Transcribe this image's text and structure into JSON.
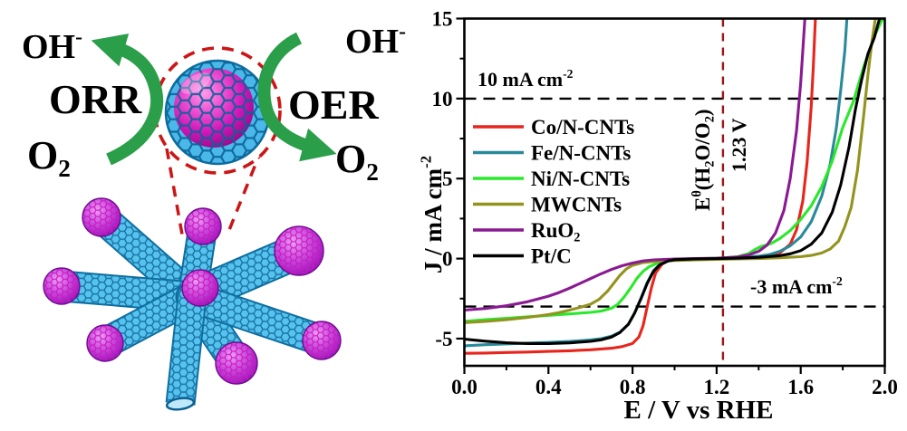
{
  "diagram": {
    "labels": {
      "hydroxide_left": {
        "text": "OH⁻",
        "segments": [
          [
            "t",
            "OH"
          ],
          [
            "sup",
            "-"
          ]
        ]
      },
      "orr": {
        "text": "ORR",
        "segments": [
          [
            "t",
            "ORR"
          ]
        ]
      },
      "oxygen_left": {
        "text": "O₂",
        "segments": [
          [
            "t",
            "O"
          ],
          [
            "sub",
            "2"
          ]
        ]
      },
      "hydroxide_right": {
        "text": "OH⁻",
        "segments": [
          [
            "t",
            "OH"
          ],
          [
            "sup",
            "-"
          ]
        ]
      },
      "oer": {
        "text": "OER",
        "segments": [
          [
            "t",
            "OER"
          ]
        ]
      },
      "oxygen_right": {
        "text": "O₂",
        "segments": [
          [
            "t",
            "O"
          ],
          [
            "sub",
            "2"
          ]
        ]
      }
    },
    "colors": {
      "arrow_green": "#2b9e4a",
      "dashed_red": "#cc1616",
      "nanotube_cyan": "#55c3ee",
      "particle_magenta": "#cf17b8"
    }
  },
  "chart_data": {
    "type": "line",
    "title": "",
    "xlabel": "E / V vs RHE",
    "xlabel_segments": [
      [
        "t",
        "E / V vs RHE"
      ]
    ],
    "ylabel": "J / mA cm⁻²",
    "ylabel_segments": [
      [
        "t",
        "J / mA cm"
      ],
      [
        "sup",
        "-2"
      ]
    ],
    "xlim": [
      0.0,
      2.0
    ],
    "ylim": [
      -6.7,
      15
    ],
    "grid": false,
    "legend_position": "upper-left-inside",
    "xticks": {
      "major": [
        0.0,
        0.4,
        0.8,
        1.2,
        1.6,
        2.0
      ],
      "labels": [
        "0.0",
        "0.4",
        "0.8",
        "1.2",
        "1.6",
        "2.0"
      ],
      "minor": [
        0.2,
        0.6,
        1.0,
        1.4,
        1.8
      ]
    },
    "yticks": {
      "major": [
        -5,
        0,
        5,
        10,
        15
      ],
      "labels": [
        "-5",
        "0",
        "5",
        "10",
        "15"
      ],
      "minor": [
        -2.5,
        2.5,
        7.5,
        12.5
      ]
    },
    "annotations": {
      "hline_top": {
        "y": 10,
        "label": "10 mA cm⁻²",
        "segments": [
          [
            "t",
            "10 mA cm"
          ],
          [
            "sup",
            "-2"
          ]
        ],
        "color": "#000000"
      },
      "hline_bottom": {
        "y": -3,
        "label": "-3 mA cm⁻²",
        "segments": [
          [
            "t",
            "-3 mA cm"
          ],
          [
            "sup",
            "-2"
          ]
        ],
        "color": "#000000"
      },
      "vline": {
        "x": 1.23,
        "color": "#9b1717",
        "label_main": "Eθ(H₂O/O₂)",
        "label_main_segments": [
          [
            "t",
            "E"
          ],
          [
            "sup",
            "θ"
          ],
          [
            "t",
            "(H"
          ],
          [
            "sub",
            "2"
          ],
          [
            "t",
            "O/O"
          ],
          [
            "sub",
            "2"
          ],
          [
            "t",
            ")"
          ]
        ],
        "label_value": "1.23 V",
        "label_value_segments": [
          [
            "t",
            "1.23 V"
          ]
        ]
      }
    },
    "series": [
      {
        "name": "Co/N-CNTs",
        "color": "#e8251d",
        "name_segments": [
          [
            "t",
            "Co/N-CNTs"
          ]
        ],
        "points": [
          [
            0,
            -5.92
          ],
          [
            0.1,
            -5.9
          ],
          [
            0.2,
            -5.87
          ],
          [
            0.3,
            -5.84
          ],
          [
            0.4,
            -5.8
          ],
          [
            0.5,
            -5.76
          ],
          [
            0.6,
            -5.7
          ],
          [
            0.7,
            -5.6
          ],
          [
            0.75,
            -5.5
          ],
          [
            0.8,
            -5.3
          ],
          [
            0.83,
            -4.9
          ],
          [
            0.85,
            -4.2
          ],
          [
            0.87,
            -3.0
          ],
          [
            0.89,
            -1.8
          ],
          [
            0.91,
            -0.9
          ],
          [
            0.94,
            -0.35
          ],
          [
            0.97,
            -0.12
          ],
          [
            1.0,
            -0.05
          ],
          [
            1.1,
            0
          ],
          [
            1.2,
            0
          ],
          [
            1.3,
            0.03
          ],
          [
            1.4,
            0.08
          ],
          [
            1.45,
            0.15
          ],
          [
            1.5,
            0.35
          ],
          [
            1.55,
            0.9
          ],
          [
            1.58,
            1.8
          ],
          [
            1.61,
            3.6
          ],
          [
            1.63,
            6.0
          ],
          [
            1.65,
            9.5
          ],
          [
            1.66,
            12
          ],
          [
            1.67,
            15
          ]
        ]
      },
      {
        "name": "Fe/N-CNTs",
        "color": "#2a8a9a",
        "name_segments": [
          [
            "t",
            "Fe/N-CNTs"
          ]
        ],
        "points": [
          [
            0,
            -5.45
          ],
          [
            0.1,
            -5.38
          ],
          [
            0.2,
            -5.33
          ],
          [
            0.3,
            -5.28
          ],
          [
            0.4,
            -5.24
          ],
          [
            0.5,
            -5.18
          ],
          [
            0.6,
            -5.08
          ],
          [
            0.65,
            -5.0
          ],
          [
            0.7,
            -4.85
          ],
          [
            0.74,
            -4.6
          ],
          [
            0.78,
            -4.1
          ],
          [
            0.81,
            -3.4
          ],
          [
            0.84,
            -2.5
          ],
          [
            0.87,
            -1.5
          ],
          [
            0.9,
            -0.75
          ],
          [
            0.93,
            -0.35
          ],
          [
            0.96,
            -0.15
          ],
          [
            1.0,
            -0.06
          ],
          [
            1.1,
            -0.02
          ],
          [
            1.2,
            0
          ],
          [
            1.3,
            0.05
          ],
          [
            1.4,
            0.15
          ],
          [
            1.45,
            0.25
          ],
          [
            1.5,
            0.45
          ],
          [
            1.55,
            0.8
          ],
          [
            1.6,
            1.35
          ],
          [
            1.65,
            2.3
          ],
          [
            1.7,
            3.9
          ],
          [
            1.74,
            5.9
          ],
          [
            1.77,
            8.2
          ],
          [
            1.79,
            10.5
          ],
          [
            1.81,
            13
          ],
          [
            1.82,
            15
          ]
        ]
      },
      {
        "name": "Ni/N-CNTs",
        "color": "#2ae82a",
        "name_segments": [
          [
            "t",
            "Ni/N-CNTs"
          ]
        ],
        "points": [
          [
            0,
            -3.92
          ],
          [
            0.1,
            -3.82
          ],
          [
            0.2,
            -3.73
          ],
          [
            0.3,
            -3.64
          ],
          [
            0.4,
            -3.55
          ],
          [
            0.5,
            -3.46
          ],
          [
            0.6,
            -3.36
          ],
          [
            0.65,
            -3.28
          ],
          [
            0.7,
            -3.1
          ],
          [
            0.73,
            -2.85
          ],
          [
            0.76,
            -2.4
          ],
          [
            0.79,
            -1.85
          ],
          [
            0.82,
            -1.25
          ],
          [
            0.85,
            -0.8
          ],
          [
            0.88,
            -0.5
          ],
          [
            0.92,
            -0.28
          ],
          [
            0.96,
            -0.15
          ],
          [
            1.0,
            -0.08
          ],
          [
            1.1,
            -0.02
          ],
          [
            1.2,
            0.02
          ],
          [
            1.25,
            0.05
          ],
          [
            1.3,
            0.12
          ],
          [
            1.35,
            0.3
          ],
          [
            1.38,
            0.55
          ],
          [
            1.41,
            0.75
          ],
          [
            1.43,
            0.82
          ],
          [
            1.46,
            0.95
          ],
          [
            1.5,
            1.25
          ],
          [
            1.55,
            1.75
          ],
          [
            1.6,
            2.45
          ],
          [
            1.65,
            3.3
          ],
          [
            1.7,
            4.5
          ],
          [
            1.75,
            6.1
          ],
          [
            1.8,
            8.2
          ],
          [
            1.85,
            9.8
          ],
          [
            1.9,
            12.0
          ],
          [
            1.95,
            13.9
          ],
          [
            1.99,
            15
          ]
        ]
      },
      {
        "name": "MWCNTs",
        "color": "#93931f",
        "name_segments": [
          [
            "t",
            "MWCNTs"
          ]
        ],
        "points": [
          [
            0,
            -4.0
          ],
          [
            0.1,
            -3.92
          ],
          [
            0.2,
            -3.82
          ],
          [
            0.3,
            -3.68
          ],
          [
            0.4,
            -3.5
          ],
          [
            0.45,
            -3.38
          ],
          [
            0.5,
            -3.22
          ],
          [
            0.55,
            -3.05
          ],
          [
            0.6,
            -2.85
          ],
          [
            0.64,
            -2.55
          ],
          [
            0.68,
            -2.05
          ],
          [
            0.71,
            -1.55
          ],
          [
            0.74,
            -1.05
          ],
          [
            0.77,
            -0.65
          ],
          [
            0.8,
            -0.42
          ],
          [
            0.85,
            -0.25
          ],
          [
            0.9,
            -0.18
          ],
          [
            1.0,
            -0.12
          ],
          [
            1.1,
            -0.08
          ],
          [
            1.2,
            -0.05
          ],
          [
            1.3,
            -0.02
          ],
          [
            1.4,
            0
          ],
          [
            1.5,
            0.05
          ],
          [
            1.6,
            0.12
          ],
          [
            1.65,
            0.2
          ],
          [
            1.7,
            0.35
          ],
          [
            1.74,
            0.6
          ],
          [
            1.78,
            1.1
          ],
          [
            1.81,
            2.0
          ],
          [
            1.84,
            3.2
          ],
          [
            1.87,
            5.5
          ],
          [
            1.9,
            9.0
          ],
          [
            1.92,
            11.5
          ],
          [
            1.94,
            13.7
          ],
          [
            1.955,
            15
          ]
        ]
      },
      {
        "name": "RuO₂",
        "color": "#8a1a92",
        "name_segments": [
          [
            "t",
            "RuO"
          ],
          [
            "sub",
            "2"
          ]
        ],
        "points": [
          [
            0,
            -3.22
          ],
          [
            0.1,
            -3.12
          ],
          [
            0.2,
            -2.95
          ],
          [
            0.3,
            -2.7
          ],
          [
            0.4,
            -2.35
          ],
          [
            0.45,
            -2.12
          ],
          [
            0.5,
            -1.85
          ],
          [
            0.55,
            -1.55
          ],
          [
            0.6,
            -1.25
          ],
          [
            0.65,
            -0.95
          ],
          [
            0.7,
            -0.68
          ],
          [
            0.75,
            -0.45
          ],
          [
            0.8,
            -0.28
          ],
          [
            0.85,
            -0.15
          ],
          [
            0.9,
            -0.08
          ],
          [
            1.0,
            -0.03
          ],
          [
            1.1,
            0
          ],
          [
            1.2,
            0.02
          ],
          [
            1.3,
            0.1
          ],
          [
            1.35,
            0.22
          ],
          [
            1.4,
            0.45
          ],
          [
            1.44,
            0.85
          ],
          [
            1.48,
            1.6
          ],
          [
            1.52,
            3.0
          ],
          [
            1.55,
            5.0
          ],
          [
            1.58,
            8.0
          ],
          [
            1.6,
            11
          ],
          [
            1.62,
            15
          ]
        ]
      },
      {
        "name": "Pt/C",
        "color": "#000000",
        "name_segments": [
          [
            "t",
            "Pt/C"
          ]
        ],
        "points": [
          [
            0,
            -5.03
          ],
          [
            0.05,
            -5.1
          ],
          [
            0.1,
            -5.16
          ],
          [
            0.2,
            -5.26
          ],
          [
            0.3,
            -5.31
          ],
          [
            0.4,
            -5.31
          ],
          [
            0.5,
            -5.27
          ],
          [
            0.6,
            -5.17
          ],
          [
            0.65,
            -5.08
          ],
          [
            0.7,
            -4.9
          ],
          [
            0.74,
            -4.62
          ],
          [
            0.78,
            -4.1
          ],
          [
            0.81,
            -3.4
          ],
          [
            0.84,
            -2.5
          ],
          [
            0.87,
            -1.55
          ],
          [
            0.9,
            -0.8
          ],
          [
            0.93,
            -0.38
          ],
          [
            0.97,
            -0.15
          ],
          [
            1.0,
            -0.07
          ],
          [
            1.1,
            -0.02
          ],
          [
            1.2,
            0
          ],
          [
            1.3,
            0.03
          ],
          [
            1.4,
            0.08
          ],
          [
            1.5,
            0.18
          ],
          [
            1.55,
            0.3
          ],
          [
            1.6,
            0.5
          ],
          [
            1.65,
            0.9
          ],
          [
            1.7,
            1.6
          ],
          [
            1.75,
            2.9
          ],
          [
            1.79,
            4.6
          ],
          [
            1.83,
            7.0
          ],
          [
            1.86,
            9.3
          ],
          [
            1.89,
            11.2
          ],
          [
            1.92,
            12.8
          ],
          [
            1.95,
            13.8
          ],
          [
            1.975,
            15
          ]
        ]
      }
    ]
  }
}
